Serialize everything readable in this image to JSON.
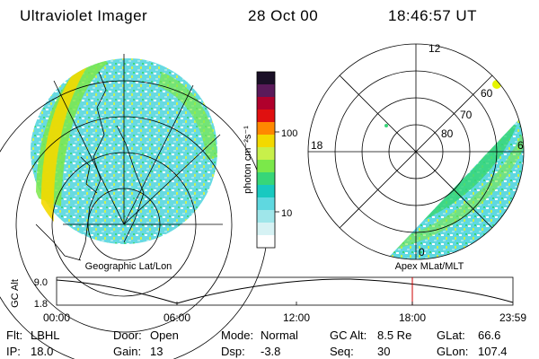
{
  "header": {
    "instrument": "Ultraviolet Imager",
    "date": "28 Oct 00",
    "time": "18:46:57 UT"
  },
  "colorbar": {
    "unit_label": "photon cm⁻²s⁻¹",
    "ticks": [
      "100",
      "10"
    ],
    "colors": [
      "#1a0f26",
      "#5a1a5a",
      "#b0002c",
      "#e01010",
      "#ff8800",
      "#f3d900",
      "#c8f04a",
      "#7be84a",
      "#37d678",
      "#18c9c0",
      "#5fd8e0",
      "#9fe6ea",
      "#d6f2f4",
      "#ffffff"
    ]
  },
  "left_map": {
    "caption": "Geographic Lat/Lon"
  },
  "right_map": {
    "caption": "Apex MLat/MLT",
    "mlt_labels": [
      "12",
      "18",
      "6",
      "0"
    ],
    "lat_labels": [
      "60",
      "70",
      "80"
    ]
  },
  "altitude_plot": {
    "ylabel": "GC Alt",
    "yticks": [
      "9.0",
      "1.8"
    ],
    "xticks": [
      "00:00",
      "06:00",
      "12:00",
      "18:00",
      "23:59"
    ],
    "marker_color": "#cc0000"
  },
  "status": {
    "row1": [
      {
        "key": "Flt:",
        "value": "LBHL"
      },
      {
        "key": "Door:",
        "value": "Open"
      },
      {
        "key": "Mode:",
        "value": "Normal"
      },
      {
        "key": "GC Alt:",
        "value": "8.5 Re"
      },
      {
        "key": "GLat:",
        "value": "66.6"
      }
    ],
    "row2": [
      {
        "key": "IP:",
        "value": "18.0"
      },
      {
        "key": "Gain:",
        "value": "13"
      },
      {
        "key": "Dsp:",
        "value": "-3.8"
      },
      {
        "key": "Seq:",
        "value": "30"
      },
      {
        "key": "GLon:",
        "value": "107.4"
      }
    ]
  }
}
